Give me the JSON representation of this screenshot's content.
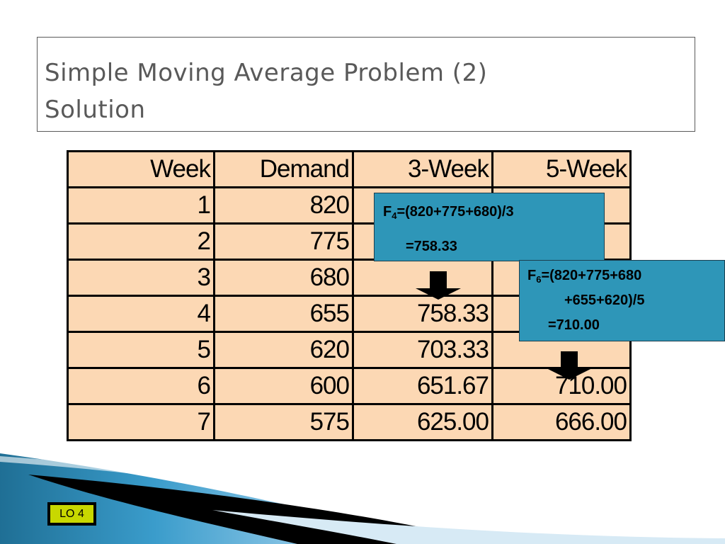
{
  "slide": {
    "title_lines": [
      "Simple Moving Average Problem (2)",
      "Solution"
    ]
  },
  "table": {
    "headers": [
      "Week",
      "Demand",
      "3-Week",
      "5-Week"
    ],
    "rows": [
      [
        "1",
        "820",
        "",
        ""
      ],
      [
        "2",
        "775",
        "",
        ""
      ],
      [
        "3",
        "680",
        "",
        ""
      ],
      [
        "4",
        "655",
        "758.33",
        ""
      ],
      [
        "5",
        "620",
        "703.33",
        ""
      ],
      [
        "6",
        "600",
        "651.67",
        "710.00"
      ],
      [
        "7",
        "575",
        "625.00",
        "666.00"
      ]
    ]
  },
  "callouts": {
    "f4": {
      "label": "F",
      "subscript": "4",
      "line1_rest": "=(820+775+680)/3",
      "line2": "=758.33"
    },
    "f6": {
      "label": "F",
      "subscript": "6",
      "line1_rest": "=(820+775+680",
      "line2": "+655+620)/5",
      "line3": "=710.00"
    }
  },
  "badge": {
    "label": "LO 4"
  },
  "colors": {
    "table_fill": "#fcd8b4",
    "callout_fill": "#2e96b8",
    "badge_fill": "#c8d800",
    "title_text": "#595959"
  },
  "icons": [
    "down-arrow-icon",
    "down-arrow-icon"
  ]
}
